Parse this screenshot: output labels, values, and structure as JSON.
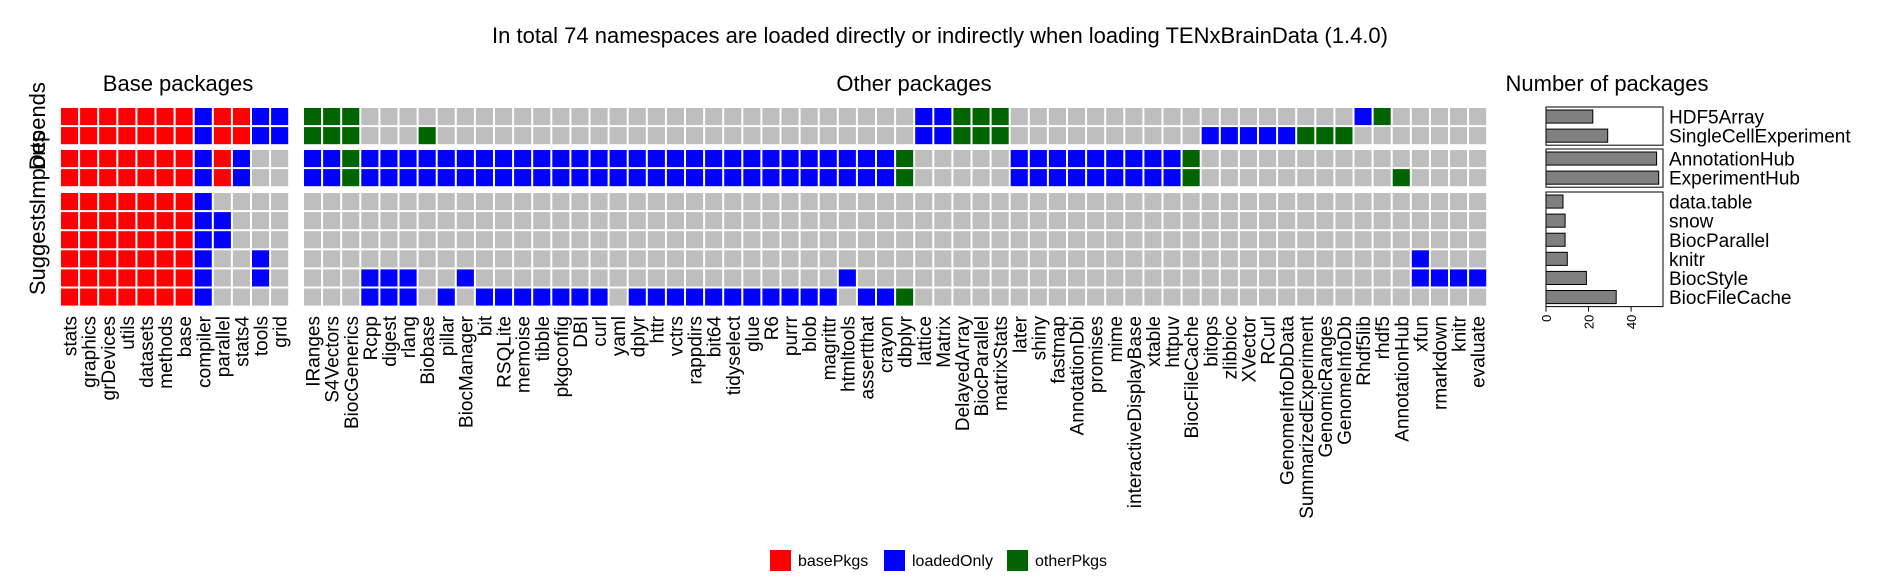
{
  "chart_data": {
    "type": "heatmap",
    "title": "In total 74 namespaces are loaded directly or indirectly when loading TENxBrainData (1.4.0)",
    "panel_titles": [
      "Base packages",
      "Other packages",
      "Number of packages"
    ],
    "row_group_labels": [
      "Depends",
      "Imports",
      "Suggests"
    ],
    "row_groups": [
      [
        "HDF5Array",
        "SingleCellExperiment"
      ],
      [
        "AnnotationHub",
        "ExperimentHub"
      ],
      [
        "data.table",
        "snow",
        "BiocParallel",
        "knitr",
        "BiocStyle",
        "BiocFileCache"
      ]
    ],
    "base_columns": [
      "stats",
      "graphics",
      "grDevices",
      "utils",
      "datasets",
      "methods",
      "base",
      "compiler",
      "parallel",
      "stats4",
      "tools",
      "grid"
    ],
    "other_columns": [
      "IRanges",
      "S4Vectors",
      "BiocGenerics",
      "Rcpp",
      "digest",
      "rlang",
      "Biobase",
      "pillar",
      "BiocManager",
      "bit",
      "RSQLite",
      "memoise",
      "tibble",
      "pkgconfig",
      "DBI",
      "curl",
      "yaml",
      "dplyr",
      "httr",
      "vctrs",
      "rappdirs",
      "bit64",
      "tidyselect",
      "glue",
      "R6",
      "purrr",
      "blob",
      "magrittr",
      "htmltools",
      "assertthat",
      "crayon",
      "dbplyr",
      "lattice",
      "Matrix",
      "DelayedArray",
      "BiocParallel",
      "matrixStats",
      "later",
      "shiny",
      "fastmap",
      "AnnotationDbi",
      "promises",
      "mime",
      "interactiveDisplayBase",
      "xtable",
      "httpuv",
      "BiocFileCache",
      "bitops",
      "zlibbioc",
      "XVector",
      "RCurl",
      "GenomeInfoDbData",
      "SummarizedExperiment",
      "GenomicRanges",
      "GenomeInfoDb",
      "Rhdf5lib",
      "rhdf5",
      "AnnotationHub",
      "xfun",
      "rmarkdown",
      "knitr",
      "evaluate"
    ],
    "cell_codes": {
      "0": "not loaded",
      "1": "basePkgs",
      "2": "loadedOnly",
      "3": "otherPkgs"
    },
    "base_matrix": [
      [
        1,
        1,
        1,
        1,
        1,
        1,
        1,
        2,
        1,
        1,
        2,
        2
      ],
      [
        1,
        1,
        1,
        1,
        1,
        1,
        1,
        2,
        1,
        1,
        2,
        2
      ],
      [
        1,
        1,
        1,
        1,
        1,
        1,
        1,
        2,
        1,
        2,
        0,
        0
      ],
      [
        1,
        1,
        1,
        1,
        1,
        1,
        1,
        2,
        1,
        2,
        0,
        0
      ],
      [
        1,
        1,
        1,
        1,
        1,
        1,
        1,
        2,
        0,
        0,
        0,
        0
      ],
      [
        1,
        1,
        1,
        1,
        1,
        1,
        1,
        2,
        2,
        0,
        0,
        0
      ],
      [
        1,
        1,
        1,
        1,
        1,
        1,
        1,
        2,
        2,
        0,
        0,
        0
      ],
      [
        1,
        1,
        1,
        1,
        1,
        1,
        1,
        2,
        0,
        0,
        2,
        0
      ],
      [
        1,
        1,
        1,
        1,
        1,
        1,
        1,
        2,
        0,
        0,
        2,
        0
      ],
      [
        1,
        1,
        1,
        1,
        1,
        1,
        1,
        2,
        0,
        0,
        0,
        0
      ]
    ],
    "other_matrix": [
      [
        3,
        3,
        3,
        0,
        0,
        0,
        0,
        0,
        0,
        0,
        0,
        0,
        0,
        0,
        0,
        0,
        0,
        0,
        0,
        0,
        0,
        0,
        0,
        0,
        0,
        0,
        0,
        0,
        0,
        0,
        0,
        0,
        2,
        2,
        3,
        3,
        3,
        0,
        0,
        0,
        0,
        0,
        0,
        0,
        0,
        0,
        0,
        0,
        0,
        0,
        0,
        0,
        0,
        0,
        0,
        2,
        3,
        0,
        0,
        0,
        0,
        0
      ],
      [
        3,
        3,
        3,
        0,
        0,
        0,
        3,
        0,
        0,
        0,
        0,
        0,
        0,
        0,
        0,
        0,
        0,
        0,
        0,
        0,
        0,
        0,
        0,
        0,
        0,
        0,
        0,
        0,
        0,
        0,
        0,
        0,
        2,
        2,
        3,
        3,
        3,
        0,
        0,
        0,
        0,
        0,
        0,
        0,
        0,
        0,
        0,
        2,
        2,
        2,
        2,
        2,
        3,
        3,
        3,
        0,
        0,
        0,
        0,
        0,
        0,
        0
      ],
      [
        2,
        2,
        3,
        2,
        2,
        2,
        2,
        2,
        2,
        2,
        2,
        2,
        2,
        2,
        2,
        2,
        2,
        2,
        2,
        2,
        2,
        2,
        2,
        2,
        2,
        2,
        2,
        2,
        2,
        2,
        2,
        3,
        0,
        0,
        0,
        0,
        0,
        2,
        2,
        2,
        2,
        2,
        2,
        2,
        2,
        2,
        3,
        0,
        0,
        0,
        0,
        0,
        0,
        0,
        0,
        0,
        0,
        0,
        0,
        0,
        0,
        0
      ],
      [
        2,
        2,
        3,
        2,
        2,
        2,
        2,
        2,
        2,
        2,
        2,
        2,
        2,
        2,
        2,
        2,
        2,
        2,
        2,
        2,
        2,
        2,
        2,
        2,
        2,
        2,
        2,
        2,
        2,
        2,
        2,
        3,
        0,
        0,
        0,
        0,
        0,
        2,
        2,
        2,
        2,
        2,
        2,
        2,
        2,
        2,
        3,
        0,
        0,
        0,
        0,
        0,
        0,
        0,
        0,
        0,
        0,
        3,
        0,
        0,
        0,
        0
      ],
      [
        0,
        0,
        0,
        0,
        0,
        0,
        0,
        0,
        0,
        0,
        0,
        0,
        0,
        0,
        0,
        0,
        0,
        0,
        0,
        0,
        0,
        0,
        0,
        0,
        0,
        0,
        0,
        0,
        0,
        0,
        0,
        0,
        0,
        0,
        0,
        0,
        0,
        0,
        0,
        0,
        0,
        0,
        0,
        0,
        0,
        0,
        0,
        0,
        0,
        0,
        0,
        0,
        0,
        0,
        0,
        0,
        0,
        0,
        0,
        0,
        0,
        0
      ],
      [
        0,
        0,
        0,
        0,
        0,
        0,
        0,
        0,
        0,
        0,
        0,
        0,
        0,
        0,
        0,
        0,
        0,
        0,
        0,
        0,
        0,
        0,
        0,
        0,
        0,
        0,
        0,
        0,
        0,
        0,
        0,
        0,
        0,
        0,
        0,
        0,
        0,
        0,
        0,
        0,
        0,
        0,
        0,
        0,
        0,
        0,
        0,
        0,
        0,
        0,
        0,
        0,
        0,
        0,
        0,
        0,
        0,
        0,
        0,
        0,
        0,
        0
      ],
      [
        0,
        0,
        0,
        0,
        0,
        0,
        0,
        0,
        0,
        0,
        0,
        0,
        0,
        0,
        0,
        0,
        0,
        0,
        0,
        0,
        0,
        0,
        0,
        0,
        0,
        0,
        0,
        0,
        0,
        0,
        0,
        0,
        0,
        0,
        0,
        0,
        0,
        0,
        0,
        0,
        0,
        0,
        0,
        0,
        0,
        0,
        0,
        0,
        0,
        0,
        0,
        0,
        0,
        0,
        0,
        0,
        0,
        0,
        0,
        0,
        0,
        0
      ],
      [
        0,
        0,
        0,
        0,
        0,
        0,
        0,
        0,
        0,
        0,
        0,
        0,
        0,
        0,
        0,
        0,
        0,
        0,
        0,
        0,
        0,
        0,
        0,
        0,
        0,
        0,
        0,
        0,
        0,
        0,
        0,
        0,
        0,
        0,
        0,
        0,
        0,
        0,
        0,
        0,
        0,
        0,
        0,
        0,
        0,
        0,
        0,
        0,
        0,
        0,
        0,
        0,
        0,
        0,
        0,
        0,
        0,
        0,
        2,
        0,
        0,
        0
      ],
      [
        0,
        0,
        0,
        2,
        2,
        2,
        0,
        0,
        2,
        0,
        0,
        0,
        0,
        0,
        0,
        0,
        0,
        0,
        0,
        0,
        0,
        0,
        0,
        0,
        0,
        0,
        0,
        0,
        2,
        0,
        0,
        0,
        0,
        0,
        0,
        0,
        0,
        0,
        0,
        0,
        0,
        0,
        0,
        0,
        0,
        0,
        0,
        0,
        0,
        0,
        0,
        0,
        0,
        0,
        0,
        0,
        0,
        0,
        2,
        2,
        2,
        2
      ],
      [
        0,
        0,
        0,
        2,
        2,
        2,
        0,
        2,
        0,
        2,
        2,
        2,
        2,
        2,
        2,
        2,
        0,
        2,
        2,
        2,
        2,
        2,
        2,
        2,
        2,
        2,
        2,
        2,
        0,
        2,
        2,
        3,
        0,
        0,
        0,
        0,
        0,
        0,
        0,
        0,
        0,
        0,
        0,
        0,
        0,
        0,
        0,
        0,
        0,
        0,
        0,
        0,
        0,
        0,
        0,
        0,
        0,
        0,
        0,
        0,
        0,
        0
      ]
    ],
    "bar_values": [
      22,
      29,
      52,
      53,
      8,
      9,
      9,
      10,
      19,
      33
    ],
    "bar_xlim": [
      0,
      55
    ],
    "bar_ticks": [
      "0",
      "20",
      "40"
    ],
    "legend": [
      {
        "label": "basePkgs",
        "color": "#ff0000"
      },
      {
        "label": "loadedOnly",
        "color": "#0000ff"
      },
      {
        "label": "otherPkgs",
        "color": "#006400"
      }
    ],
    "colors": {
      "empty": "#bebebe",
      "grid": "#ffffff",
      "bar_fill": "#808080",
      "bar_stroke": "#000000"
    }
  }
}
